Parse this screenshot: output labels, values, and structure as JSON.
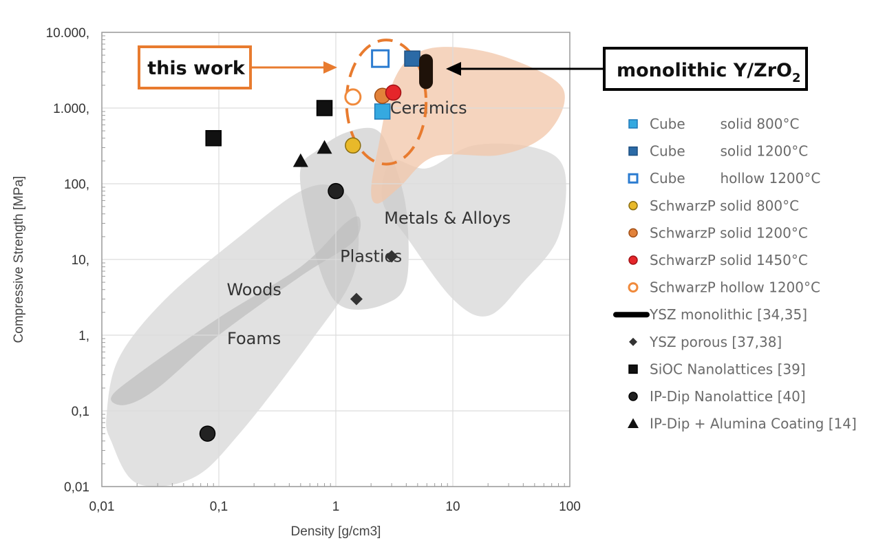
{
  "chart_data": {
    "type": "scatter",
    "title": "",
    "xlabel": "Density [g/cm3]",
    "ylabel": "Compressive Strength [MPa]",
    "xscale": "log",
    "yscale": "log",
    "xlim": [
      0.01,
      100
    ],
    "ylim": [
      0.01,
      10000
    ],
    "grid": true,
    "legend_position": "right",
    "x_ticks": [
      {
        "value": 0.01,
        "label": "0,01"
      },
      {
        "value": 0.1,
        "label": "0,1"
      },
      {
        "value": 1,
        "label": "1"
      },
      {
        "value": 10,
        "label": "10"
      },
      {
        "value": 100,
        "label": "100"
      }
    ],
    "y_ticks": [
      {
        "value": 0.01,
        "label": "0,01"
      },
      {
        "value": 0.1,
        "label": "0,1"
      },
      {
        "value": 1,
        "label": "1,"
      },
      {
        "value": 10,
        "label": "10,"
      },
      {
        "value": 100,
        "label": "100,"
      },
      {
        "value": 1000,
        "label": "1.000,"
      },
      {
        "value": 10000,
        "label": "10.000,"
      }
    ],
    "regions": [
      {
        "name": "Foams",
        "label": "Foams",
        "color": "#c8c8c8",
        "label_at": [
          0.2,
          0.9
        ],
        "outline": [
          [
            0.012,
            0.04
          ],
          [
            0.011,
            0.09
          ],
          [
            0.014,
            0.5
          ],
          [
            0.035,
            3
          ],
          [
            0.15,
            20
          ],
          [
            0.5,
            80
          ],
          [
            1.0,
            90
          ],
          [
            1.5,
            40
          ],
          [
            1.4,
            6
          ],
          [
            0.6,
            0.8
          ],
          [
            0.15,
            0.05
          ],
          [
            0.06,
            0.013
          ],
          [
            0.02,
            0.011
          ]
        ]
      },
      {
        "name": "Woods",
        "label": "Woods",
        "color": "#b5b5b5",
        "label_at": [
          0.2,
          4
        ],
        "outline": [
          [
            0.012,
            0.15
          ],
          [
            0.02,
            0.3
          ],
          [
            0.1,
            1.7
          ],
          [
            0.5,
            8
          ],
          [
            1.2,
            30
          ],
          [
            1.6,
            35
          ],
          [
            1.4,
            17
          ],
          [
            0.5,
            6
          ],
          [
            0.1,
            1
          ],
          [
            0.03,
            0.2
          ],
          [
            0.016,
            0.12
          ]
        ]
      },
      {
        "name": "Plastics",
        "label": "Plastics",
        "color": "#c0c0c0",
        "label_at": [
          2,
          11
        ],
        "outline": [
          [
            0.5,
            160
          ],
          [
            0.7,
            280
          ],
          [
            1.2,
            470
          ],
          [
            2.2,
            520
          ],
          [
            3,
            230
          ],
          [
            4,
            45
          ],
          [
            4,
            5
          ],
          [
            2.5,
            2.5
          ],
          [
            1.2,
            2.3
          ],
          [
            0.8,
            5
          ],
          [
            0.55,
            40
          ]
        ]
      },
      {
        "name": "Metals & Alloys",
        "label": "Metals & Alloys",
        "color": "#c8c8c8",
        "label_at": [
          9,
          35
        ],
        "outline": [
          [
            2.5,
            60
          ],
          [
            3,
            200
          ],
          [
            6,
            160
          ],
          [
            15,
            320
          ],
          [
            50,
            300
          ],
          [
            90,
            150
          ],
          [
            80,
            20
          ],
          [
            40,
            5
          ],
          [
            20,
            1.8
          ],
          [
            10,
            3
          ],
          [
            4,
            20
          ]
        ]
      },
      {
        "name": "Ceramics",
        "label": "Ceramics",
        "color": "#f2c6a8",
        "label_at": [
          6.2,
          1000
        ],
        "outline": [
          [
            2,
            80
          ],
          [
            2.3,
            300
          ],
          [
            3.2,
            2500
          ],
          [
            6,
            6000
          ],
          [
            20,
            5500
          ],
          [
            70,
            2500
          ],
          [
            90,
            1200
          ],
          [
            60,
            420
          ],
          [
            25,
            240
          ],
          [
            7,
            230
          ],
          [
            3.5,
            90
          ],
          [
            2.3,
            55
          ]
        ]
      }
    ],
    "this_work_ellipse": {
      "cx": 2.7,
      "cy": 1200,
      "rx_decades": 0.34,
      "ry_decades": 0.82,
      "color": "#e87b2f"
    },
    "series": [
      {
        "name": "Cube solid 800°C",
        "label": "Cube        solid 800°C",
        "marker": "square",
        "fill": "#35a9e0",
        "stroke": "#1f79b8",
        "points": [
          [
            2.5,
            900
          ]
        ]
      },
      {
        "name": "Cube solid 1200°C",
        "label": "Cube        solid 1200°C",
        "marker": "square",
        "fill": "#2b6aa6",
        "stroke": "#1d4f80",
        "points": [
          [
            4.5,
            4500
          ]
        ]
      },
      {
        "name": "Cube hollow 1200°C",
        "label": "Cube        hollow 1200°C",
        "marker": "square-open",
        "fill": "#ffffff",
        "stroke": "#2a7bd0",
        "points": [
          [
            2.4,
            4500
          ]
        ]
      },
      {
        "name": "SchwarzP solid 800°C",
        "label": "SchwarzP solid 800°C",
        "marker": "circle",
        "fill": "#e8b92a",
        "stroke": "#8a6d10",
        "points": [
          [
            1.4,
            320
          ]
        ]
      },
      {
        "name": "SchwarzP solid 1200°C",
        "label": "SchwarzP solid 1200°C",
        "marker": "circle",
        "fill": "#e2823a",
        "stroke": "#a04d14",
        "points": [
          [
            2.5,
            1450
          ]
        ]
      },
      {
        "name": "SchwarzP solid 1450°C",
        "label": "SchwarzP solid 1450°C",
        "marker": "circle",
        "fill": "#e5262a",
        "stroke": "#a01014",
        "points": [
          [
            3.1,
            1600
          ]
        ]
      },
      {
        "name": "SchwarzP hollow 1200°C",
        "label": "SchwarzP hollow 1200°C",
        "marker": "circle-open",
        "fill": "#ffffff",
        "stroke": "#f08a3c",
        "points": [
          [
            1.4,
            1400
          ]
        ]
      },
      {
        "name": "YSZ monolithic [34,35]",
        "label": "YSZ monolithic [34,35]",
        "marker": "thick-line",
        "fill": "#1a1a1a",
        "stroke": "#000000",
        "points": [
          [
            5.9,
            2200
          ],
          [
            5.9,
            4200
          ]
        ]
      },
      {
        "name": "YSZ porous [37,38]",
        "label": "YSZ porous [37,38]",
        "marker": "diamond",
        "fill": "#333333",
        "stroke": "#222222",
        "points": [
          [
            1.5,
            3
          ],
          [
            3.0,
            11
          ]
        ]
      },
      {
        "name": "SiOC Nanolattices [39]",
        "label": "SiOC Nanolattices [39]",
        "marker": "square",
        "fill": "#111111",
        "stroke": "#000000",
        "points": [
          [
            0.09,
            400
          ],
          [
            0.8,
            1000
          ]
        ]
      },
      {
        "name": "IP-Dip Nanolattice [40]",
        "label": "IP-Dip Nanolattice [40]",
        "marker": "circle",
        "fill": "#222222",
        "stroke": "#000000",
        "points": [
          [
            0.08,
            0.05
          ],
          [
            1.0,
            80
          ]
        ]
      },
      {
        "name": "IP-Dip + Alumina Coating [14]",
        "label": "IP-Dip + Alumina Coating [14]",
        "marker": "triangle",
        "fill": "#111111",
        "stroke": "#000000",
        "points": [
          [
            0.5,
            200
          ],
          [
            0.8,
            300
          ]
        ]
      }
    ],
    "annotations": [
      {
        "name": "this-work-callout",
        "text": "this work",
        "box_color": "#e87b2f",
        "arrow_color": "#e87b2f",
        "points_to": [
          1.2,
          4500
        ]
      },
      {
        "name": "monolithic-callout",
        "text": "monolithic Y/ZrO",
        "subscript": "2",
        "box_color": "#000000",
        "arrow_color": "#000000",
        "points_to": [
          6.6,
          3300
        ]
      }
    ]
  }
}
